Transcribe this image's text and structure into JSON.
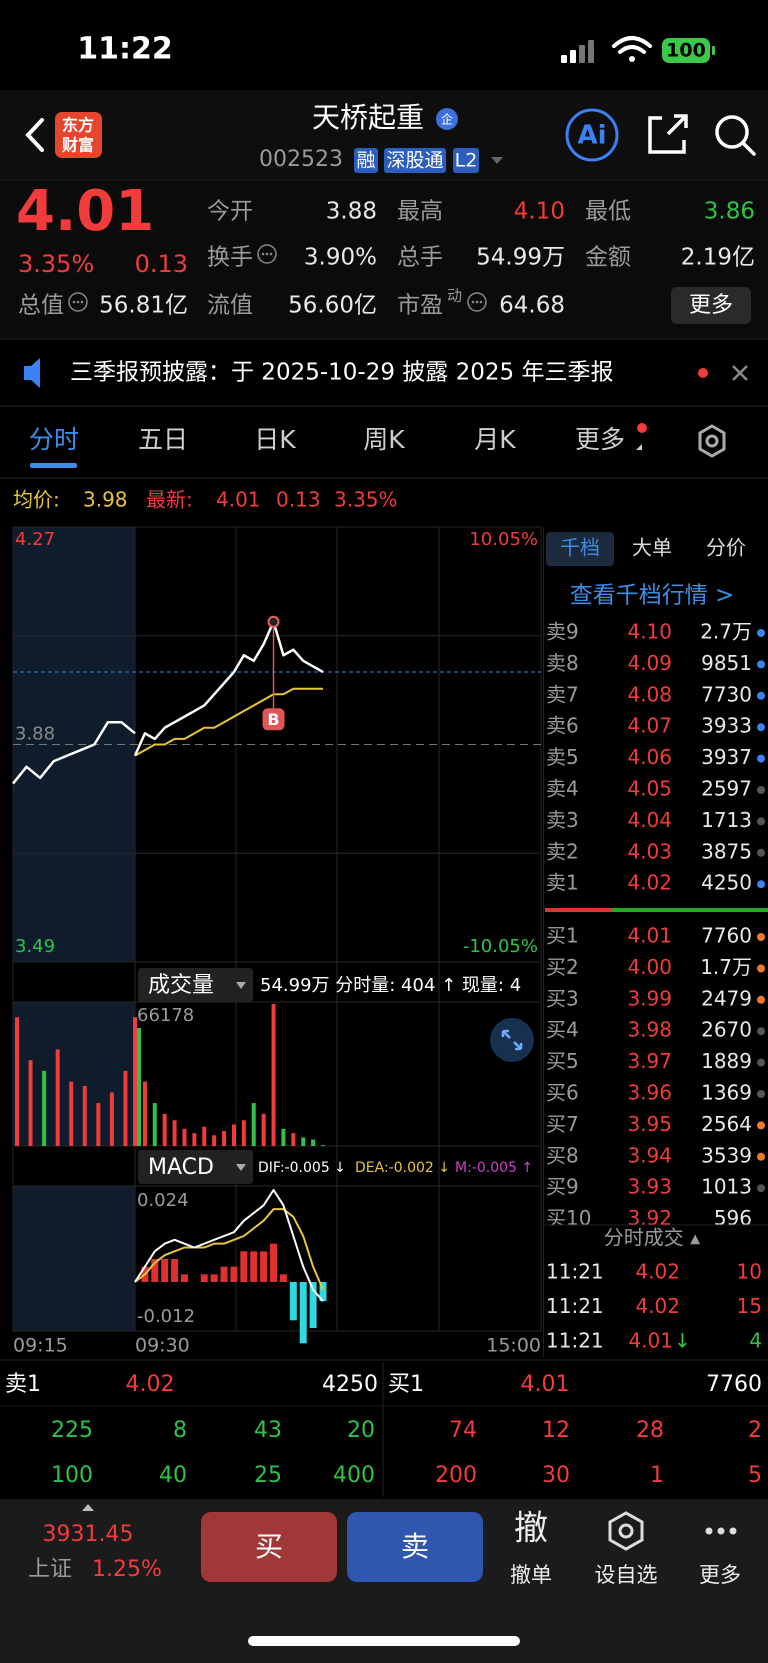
{
  "status": {
    "time": "11:22",
    "battery": "100"
  },
  "header": {
    "logo": [
      "东方",
      "财富"
    ],
    "title": "天桥起重",
    "badge": "企",
    "code": "002523",
    "tags": [
      "融",
      "深股通",
      "L2"
    ],
    "ai": "Ai"
  },
  "quote": {
    "price": "4.01",
    "change_pct": "3.35%",
    "change": "0.13",
    "fields": [
      {
        "label": "今开",
        "value": "3.88"
      },
      {
        "label": "最高",
        "value": "4.10"
      },
      {
        "label": "最低",
        "value": "3.86"
      },
      {
        "label": "换手",
        "value": "3.90%"
      },
      {
        "label": "总手",
        "value": "54.99万"
      },
      {
        "label": "金额",
        "value": "2.19亿"
      },
      {
        "label": "总值",
        "value": "56.81亿"
      },
      {
        "label": "流值",
        "value": "56.60亿"
      },
      {
        "label": "市盈",
        "sup": "动",
        "value": "64.68"
      }
    ],
    "more": "更多"
  },
  "notice": "三季报预披露：于 2025-10-29 披露 2025 年三季报",
  "tabs": [
    "分时",
    "五日",
    "日K",
    "周K",
    "月K",
    "更多"
  ],
  "summary": {
    "avg_label": "均价:",
    "avg": "3.98",
    "last_label": "最新:",
    "last": "4.01",
    "change": "0.13",
    "pct": "3.35%"
  },
  "price_chart": {
    "ylim": [
      3.49,
      4.27
    ],
    "yticks": [
      4.27,
      3.88,
      3.49
    ],
    "ytick_colors": [
      "#f23b3b",
      "#8a8a8a",
      "#2fc24a"
    ],
    "right_labels": [
      "10.05%",
      "-10.05%"
    ],
    "last_line": 4.01,
    "premarket": [
      3.81,
      3.84,
      3.82,
      3.85,
      3.86,
      3.87,
      3.88,
      3.92,
      3.92,
      3.9
    ],
    "price": [
      3.86,
      3.9,
      3.89,
      3.91,
      3.92,
      3.93,
      3.94,
      3.95,
      3.97,
      3.99,
      4.01,
      4.04,
      4.03,
      4.06,
      4.1,
      4.04,
      4.05,
      4.03,
      4.02,
      4.01
    ],
    "avg": [
      3.86,
      3.87,
      3.88,
      3.88,
      3.89,
      3.89,
      3.9,
      3.91,
      3.91,
      3.92,
      3.93,
      3.94,
      3.95,
      3.96,
      3.97,
      3.97,
      3.98,
      3.98,
      3.98,
      3.98
    ],
    "marker": "B",
    "colors": {
      "price": "#ffffff",
      "avg": "#e8c63a"
    }
  },
  "volume_chart": {
    "name": "成交量",
    "info": "54.99万 分时量: 404 ↑ 现量: 4",
    "ylim": [
      0,
      66178
    ],
    "yticks": [
      66178
    ],
    "premarket": [
      60000,
      40000,
      35000,
      45000,
      30000,
      28000,
      20000,
      25000,
      35000,
      55000
    ],
    "values": [
      60000,
      30000,
      20000,
      15000,
      12000,
      8000,
      6000,
      9000,
      5000,
      7000,
      10000,
      12000,
      20000,
      15000,
      66178,
      8000,
      6000,
      4000,
      3000,
      404
    ]
  },
  "macd_chart": {
    "name": "MACD",
    "dif_label": "DIF:-0.005 ↓",
    "dea_label": "DEA:-0.002 ↓",
    "m_label": "M:-0.005 ↑",
    "ylim": [
      -0.012,
      0.024
    ],
    "yticks": [
      0.024,
      -0.012
    ],
    "dif": [
      0.0,
      0.004,
      0.008,
      0.01,
      0.011,
      0.01,
      0.009,
      0.01,
      0.011,
      0.012,
      0.013,
      0.016,
      0.018,
      0.02,
      0.024,
      0.02,
      0.012,
      0.004,
      -0.002,
      -0.005
    ],
    "dea": [
      0.0,
      0.002,
      0.005,
      0.007,
      0.008,
      0.009,
      0.009,
      0.009,
      0.01,
      0.01,
      0.011,
      0.012,
      0.014,
      0.016,
      0.019,
      0.019,
      0.017,
      0.012,
      0.004,
      -0.002
    ],
    "macd": [
      0.0,
      0.004,
      0.006,
      0.006,
      0.006,
      0.002,
      0.0,
      0.002,
      0.002,
      0.004,
      0.004,
      0.008,
      0.008,
      0.008,
      0.01,
      0.002,
      -0.01,
      -0.016,
      -0.012,
      -0.005
    ]
  },
  "time_axis": [
    "09:15",
    "09:30",
    "15:00"
  ],
  "depth": {
    "tabs": [
      "千档",
      "大单",
      "分价"
    ],
    "link": "查看千档行情 >",
    "asks": [
      {
        "label": "卖9",
        "price": "4.10",
        "volume": "2.7万",
        "dot": "#3b82f6"
      },
      {
        "label": "卖8",
        "price": "4.09",
        "volume": "9851",
        "dot": "#3b82f6"
      },
      {
        "label": "卖7",
        "price": "4.08",
        "volume": "7730",
        "dot": "#3b82f6"
      },
      {
        "label": "卖6",
        "price": "4.07",
        "volume": "3933",
        "dot": "#3b82f6"
      },
      {
        "label": "卖5",
        "price": "4.06",
        "volume": "3937",
        "dot": "#3b82f6"
      },
      {
        "label": "卖4",
        "price": "4.05",
        "volume": "2597",
        "dot": "#555555"
      },
      {
        "label": "卖3",
        "price": "4.04",
        "volume": "1713",
        "dot": "#555555"
      },
      {
        "label": "卖2",
        "price": "4.03",
        "volume": "3875",
        "dot": "#555555"
      },
      {
        "label": "卖1",
        "price": "4.02",
        "volume": "4250",
        "dot": "#3b82f6"
      }
    ],
    "bids": [
      {
        "label": "买1",
        "price": "4.01",
        "volume": "7760",
        "dot": "#f07a2a"
      },
      {
        "label": "买2",
        "price": "4.00",
        "volume": "1.7万",
        "dot": "#f07a2a"
      },
      {
        "label": "买3",
        "price": "3.99",
        "volume": "2479",
        "dot": "#f07a2a"
      },
      {
        "label": "买4",
        "price": "3.98",
        "volume": "2670",
        "dot": "#555555"
      },
      {
        "label": "买5",
        "price": "3.97",
        "volume": "1889",
        "dot": "#555555"
      },
      {
        "label": "买6",
        "price": "3.96",
        "volume": "1369",
        "dot": "#555555"
      },
      {
        "label": "买7",
        "price": "3.95",
        "volume": "2564",
        "dot": "#f07a2a"
      },
      {
        "label": "买8",
        "price": "3.94",
        "volume": "3539",
        "dot": "#f07a2a"
      },
      {
        "label": "买9",
        "price": "3.93",
        "volume": "1013",
        "dot": "#555555"
      },
      {
        "label": "买10",
        "price": "3.92",
        "volume": "596"
      }
    ],
    "trades_title": "分时成交 ▴",
    "trades": [
      {
        "time": "11:21",
        "price": "4.02",
        "volume": "10",
        "color": "#f23b3b"
      },
      {
        "time": "11:21",
        "price": "4.02",
        "volume": "15",
        "color": "#f23b3b"
      },
      {
        "time": "11:21",
        "price": "4.01",
        "dir": "↓",
        "volume": "4",
        "color": "#2fc24a"
      }
    ]
  },
  "book": {
    "ask": {
      "label": "卖1",
      "price": "4.02",
      "volume": "4250",
      "rows": [
        [
          "225",
          "8",
          "43",
          "20"
        ],
        [
          "100",
          "40",
          "25",
          "400"
        ]
      ]
    },
    "bid": {
      "label": "买1",
      "price": "4.01",
      "volume": "7760",
      "rows": [
        [
          "74",
          "12",
          "28",
          "2"
        ],
        [
          "200",
          "30",
          "1",
          "5"
        ]
      ]
    }
  },
  "footer": {
    "index_value": "3931.45",
    "index_name": "上证",
    "index_pct": "1.25%",
    "buy": "买",
    "sell": "卖",
    "actions": [
      {
        "icon": "撤",
        "label": "撤单"
      },
      {
        "label": "设自选"
      },
      {
        "label": "更多"
      }
    ]
  }
}
